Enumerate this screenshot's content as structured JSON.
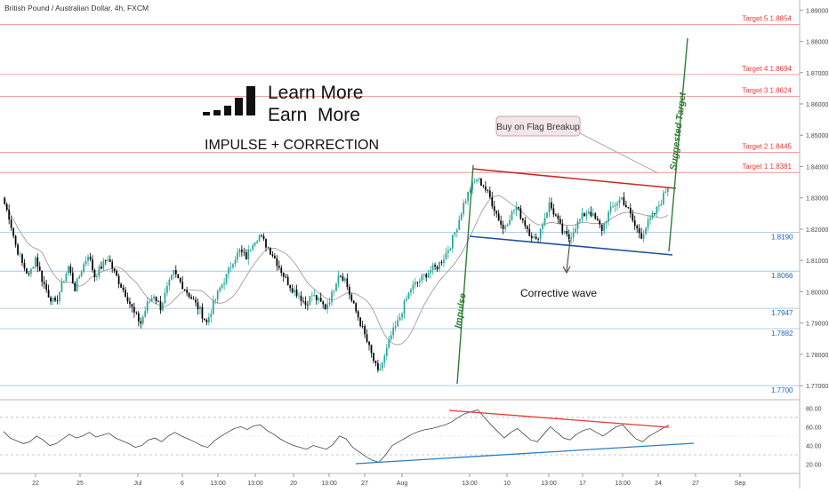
{
  "header": {
    "symbol_title": "British Pound / Australian Dollar, 4h, FXCM"
  },
  "branding": {
    "line1": "Learn More",
    "line2": "Earn  More",
    "subtitle": "IMPULSE + CORRECTION"
  },
  "colors": {
    "bull": "#26a69a",
    "bear": "#000000",
    "ma": "#9e9e9e",
    "target_line": "#e8847c",
    "target_text": "#e53935",
    "support_line": "#9bbbe0",
    "support_text": "#1e62b6",
    "flag_top": "#c62828",
    "flag_bottom": "#1e4fa0",
    "green": "#2e7d32",
    "axis_text": "#444444"
  },
  "chart_data": {
    "type": "candlestick",
    "title": "British Pound / Australian Dollar, 4h, FXCM",
    "y_axis": {
      "ticks": [
        "1.89000",
        "1.88000",
        "1.87000",
        "1.86000",
        "1.85000",
        "1.84000",
        "1.83000",
        "1.82000",
        "1.81000",
        "1.80000",
        "1.79000",
        "1.78000",
        "1.77000"
      ],
      "range": [
        1.7655,
        1.8932
      ]
    },
    "x_axis": {
      "ticks": [
        "22",
        "25",
        "Jul",
        "6",
        "13:00",
        "13:00",
        "20",
        "13:00",
        "27",
        "Aug",
        "13:00",
        "10",
        "13:00",
        "17",
        "13:00",
        "24",
        "27",
        "Sep"
      ]
    },
    "targets": [
      {
        "label": "Target 5",
        "value": "1.8854"
      },
      {
        "label": "Target 4",
        "value": "1.8694"
      },
      {
        "label": "Target 3",
        "value": "1.8624"
      },
      {
        "label": "Target 2",
        "value": "1.8445"
      },
      {
        "label": "Target 1",
        "value": "1.8381"
      }
    ],
    "supports": [
      "1.8190",
      "1.8066",
      "1.7947",
      "1.7882",
      "1.7700"
    ],
    "annotations": {
      "callout": "Buy on Flag Breakup",
      "corrective": "Corrective wave",
      "impulse": "Impulse",
      "suggested": "Suggested Target"
    },
    "price_path": [
      1.83,
      1.824,
      1.815,
      1.809,
      1.805,
      1.811,
      1.804,
      1.799,
      1.796,
      1.802,
      1.808,
      1.801,
      1.807,
      1.812,
      1.805,
      1.808,
      1.811,
      1.806,
      1.802,
      1.798,
      1.793,
      1.79,
      1.796,
      1.799,
      1.795,
      1.801,
      1.806,
      1.803,
      1.8,
      1.797,
      1.794,
      1.79,
      1.796,
      1.801,
      1.805,
      1.81,
      1.813,
      1.811,
      1.816,
      1.818,
      1.815,
      1.812,
      1.808,
      1.804,
      1.801,
      1.799,
      1.796,
      1.799,
      1.797,
      1.795,
      1.799,
      1.806,
      1.804,
      1.797,
      1.792,
      1.786,
      1.78,
      1.774,
      1.779,
      1.786,
      1.79,
      1.796,
      1.801,
      1.803,
      1.805,
      1.807,
      1.808,
      1.811,
      1.815,
      1.821,
      1.828,
      1.833,
      1.836,
      1.834,
      1.83,
      1.825,
      1.82,
      1.824,
      1.827,
      1.823,
      1.819,
      1.816,
      1.822,
      1.828,
      1.824,
      1.819,
      1.817,
      1.821,
      1.824,
      1.826,
      1.823,
      1.82,
      1.825,
      1.828,
      1.83,
      1.826,
      1.821,
      1.818,
      1.822,
      1.825,
      1.829,
      1.834
    ],
    "rsi": {
      "ticks": [
        "80.00",
        "60.00",
        "40.00",
        "20.00"
      ],
      "range": [
        10,
        88
      ],
      "levels": [
        70,
        30
      ],
      "path": [
        55,
        48,
        45,
        42,
        44,
        50,
        46,
        40,
        42,
        47,
        52,
        48,
        50,
        54,
        49,
        51,
        53,
        48,
        45,
        42,
        38,
        40,
        46,
        48,
        44,
        50,
        54,
        50,
        47,
        44,
        40,
        38,
        45,
        50,
        54,
        58,
        60,
        57,
        61,
        62,
        56,
        52,
        47,
        43,
        40,
        38,
        36,
        40,
        38,
        36,
        41,
        50,
        47,
        38,
        33,
        28,
        24,
        22,
        30,
        40,
        44,
        48,
        52,
        55,
        57,
        58,
        60,
        62,
        65,
        70,
        74,
        76,
        78,
        70,
        62,
        55,
        48,
        54,
        58,
        52,
        46,
        44,
        52,
        60,
        54,
        48,
        46,
        52,
        56,
        58,
        54,
        50,
        55,
        60,
        62,
        54,
        47,
        44,
        50,
        54,
        58,
        62
      ]
    }
  }
}
